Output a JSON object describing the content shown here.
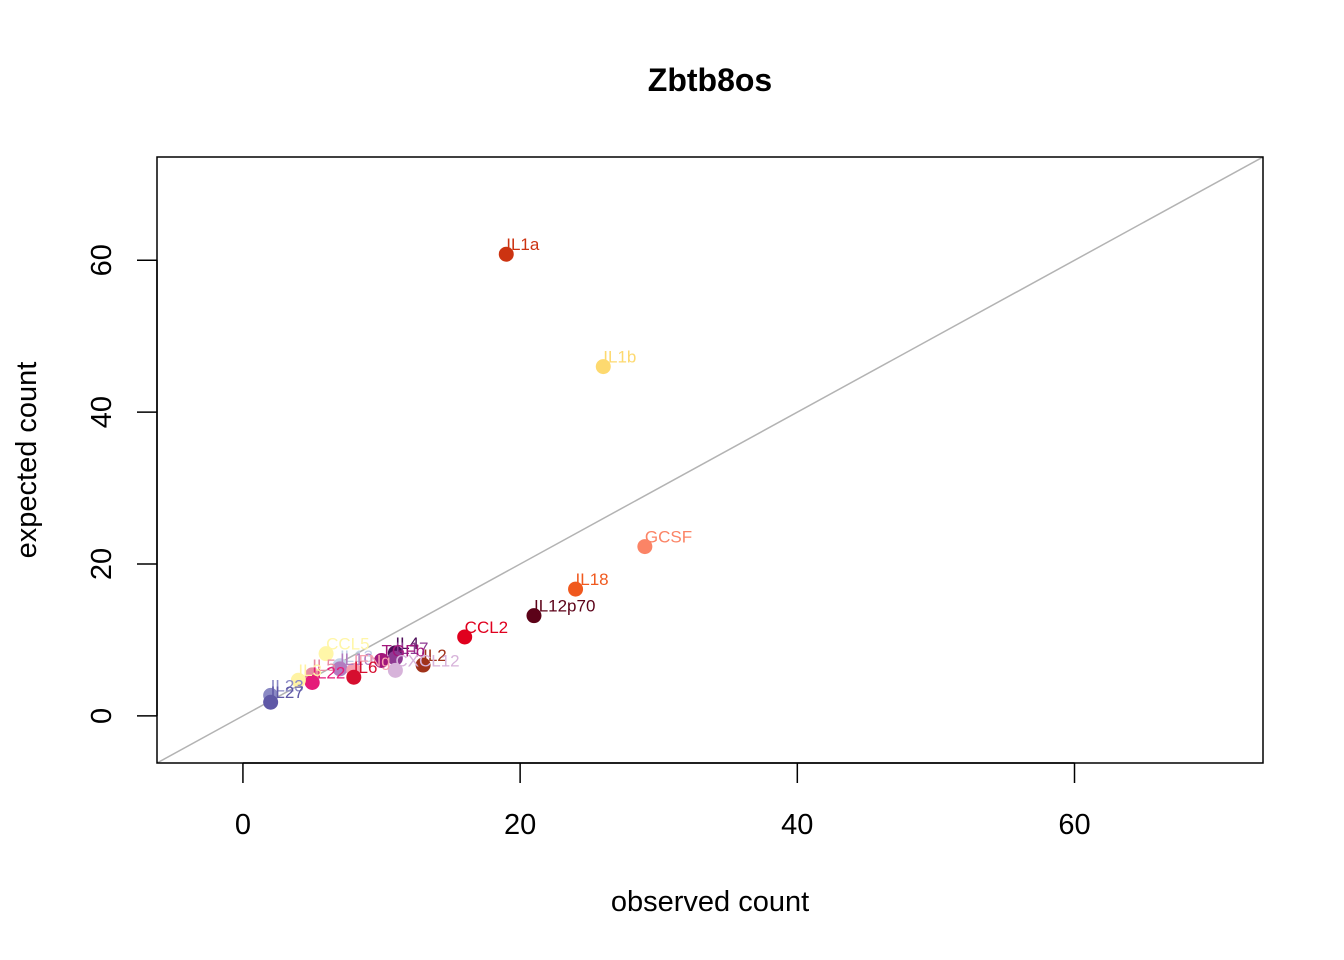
{
  "chart_data": {
    "type": "scatter",
    "title": "Zbtb8os",
    "xlabel": "observed count",
    "ylabel": "expected count",
    "xlim": [
      -6.2,
      73.6
    ],
    "ylim": [
      -6.2,
      73.6
    ],
    "x_ticks": [
      "0",
      "20",
      "40",
      "60"
    ],
    "y_ticks": [
      "0",
      "20",
      "40",
      "60"
    ],
    "reference_line": "y = x",
    "reference_line_color": "#b3b3b3",
    "grid": false,
    "legend": "none",
    "points": [
      {
        "label": "IL1a",
        "x": 19,
        "y": 60.8,
        "color": "#cc3311"
      },
      {
        "label": "IL1b",
        "x": 26,
        "y": 46.0,
        "color": "#fdd96f"
      },
      {
        "label": "GCSF",
        "x": 29,
        "y": 22.3,
        "color": "#fb8466"
      },
      {
        "label": "IL18",
        "x": 24,
        "y": 16.7,
        "color": "#f0591e"
      },
      {
        "label": "IL12p70",
        "x": 21,
        "y": 13.2,
        "color": "#5c0218"
      },
      {
        "label": "CCL2",
        "x": 16,
        "y": 10.4,
        "color": "#e0001e"
      },
      {
        "label": "CCL5",
        "x": 6,
        "y": 8.2,
        "color": "#fff6a8"
      },
      {
        "label": "IL4",
        "x": 11,
        "y": 8.3,
        "color": "#4e0d59"
      },
      {
        "label": "IL17",
        "x": 11,
        "y": 7.6,
        "color": "#8e3a93"
      },
      {
        "label": "TGFb",
        "x": 10,
        "y": 7.3,
        "color": "#a2167b"
      },
      {
        "label": "IL2",
        "x": 13,
        "y": 6.7,
        "color": "#a0321a"
      },
      {
        "label": "CXCL12",
        "x": 11,
        "y": 6.0,
        "color": "#d7b3da"
      },
      {
        "label": "IL13",
        "x": 7,
        "y": 6.6,
        "color": "#c3d1e7"
      },
      {
        "label": "IL10",
        "x": 7,
        "y": 6.2,
        "color": "#b27cc0"
      },
      {
        "label": "IFNg",
        "x": 8,
        "y": 6.0,
        "color": "#f6a0b0"
      },
      {
        "label": "IL6",
        "x": 8,
        "y": 5.1,
        "color": "#d60e2f"
      },
      {
        "label": "IL5",
        "x": 5,
        "y": 5.4,
        "color": "#e88aa1"
      },
      {
        "label": "IL22",
        "x": 5,
        "y": 4.4,
        "color": "#e51b79"
      },
      {
        "label": "IL3",
        "x": 4,
        "y": 4.7,
        "color": "#fff3a3"
      },
      {
        "label": "IL23",
        "x": 2,
        "y": 2.7,
        "color": "#8a89c4"
      },
      {
        "label": "IL27",
        "x": 2,
        "y": 1.8,
        "color": "#5f58a6"
      }
    ]
  }
}
